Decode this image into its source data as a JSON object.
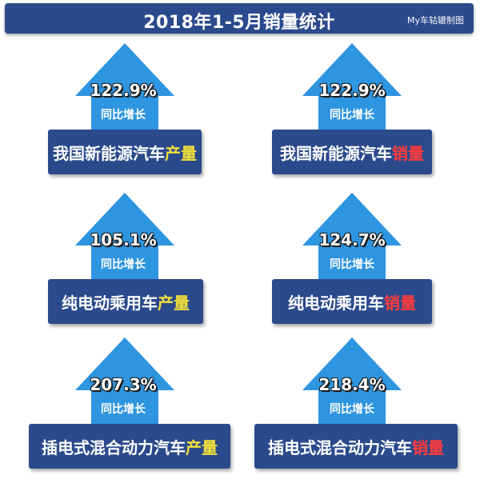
{
  "header": {
    "title": "2018年1-5月销量统计",
    "watermark": "My车轱辘制图"
  },
  "colors": {
    "banner": "#2b4a8c",
    "arrow": "#2e95e0",
    "production_highlight": "#f5e23a",
    "sales_highlight": "#ff3b3b"
  },
  "cards": [
    {
      "percent": "122.9%",
      "yoy_label": "同比增长",
      "label_prefix": "我国新能源汽车",
      "label_highlight": "产量"
    },
    {
      "percent": "122.9%",
      "yoy_label": "同比增长",
      "label_prefix": "我国新能源汽车",
      "label_highlight": "销量"
    },
    {
      "percent": "105.1%",
      "yoy_label": "同比增长",
      "label_prefix": "纯电动乘用车",
      "label_highlight": "产量"
    },
    {
      "percent": "124.7%",
      "yoy_label": "同比增长",
      "label_prefix": "纯电动乘用车",
      "label_highlight": "销量"
    },
    {
      "percent": "207.3%",
      "yoy_label": "同比增长",
      "label_prefix": "插电式混合动力汽车",
      "label_highlight": "产量"
    },
    {
      "percent": "218.4%",
      "yoy_label": "同比增长",
      "label_prefix": "插电式混合动力汽车",
      "label_highlight": "销量"
    }
  ]
}
